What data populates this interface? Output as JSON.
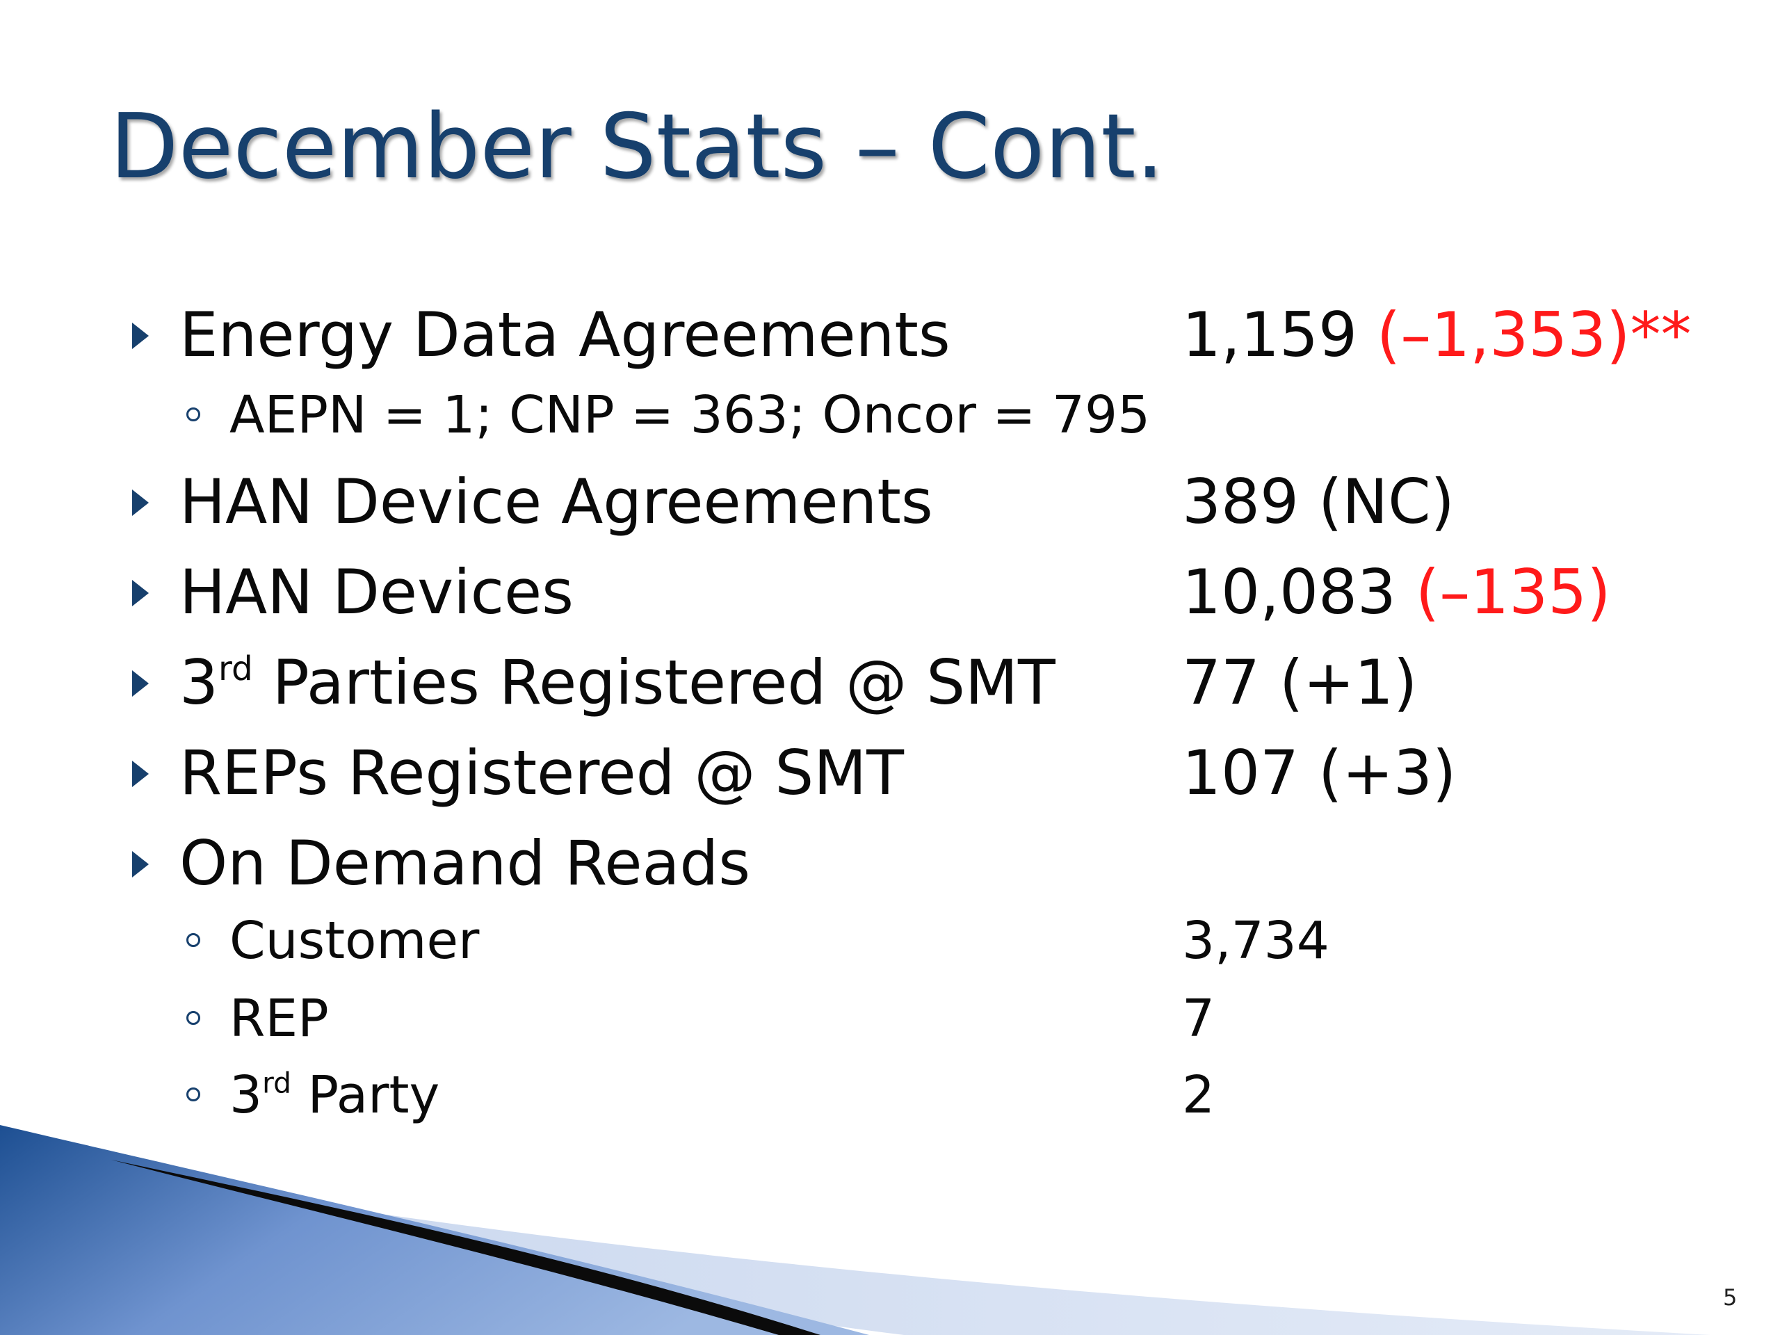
{
  "slide": {
    "title": "December Stats – Cont.",
    "page_number": "5",
    "colors": {
      "title": "#17406d",
      "text": "#0a0a0a",
      "negative_change": "#ff1a1a",
      "accent_blue": "#3b6fb6"
    }
  },
  "items": {
    "energy_data": {
      "label": "Energy Data Agreements",
      "value": "1,159 ",
      "change": "(–1,353)**"
    },
    "energy_data_breakdown": {
      "label": "AEPN = 1; CNP = 363; Oncor = 795"
    },
    "han_agreements": {
      "label": "HAN Device Agreements",
      "value": "389 (NC)"
    },
    "han_devices": {
      "label": "HAN Devices",
      "value": "10,083 ",
      "change": "(–135)"
    },
    "third_parties": {
      "label_prefix": "3",
      "label_sup": "rd",
      "label_suffix": " Parties Registered @ SMT",
      "value": "77 (+1)"
    },
    "reps": {
      "label": "REPs Registered @ SMT",
      "value": "107 (+3)"
    },
    "on_demand": {
      "label": "On Demand Reads"
    },
    "customer": {
      "label": "Customer",
      "value": "3,734"
    },
    "rep": {
      "label": "REP",
      "value": "7"
    },
    "third_party": {
      "label_prefix": "3",
      "label_sup": "rd",
      "label_suffix": " Party",
      "value": "2"
    }
  }
}
